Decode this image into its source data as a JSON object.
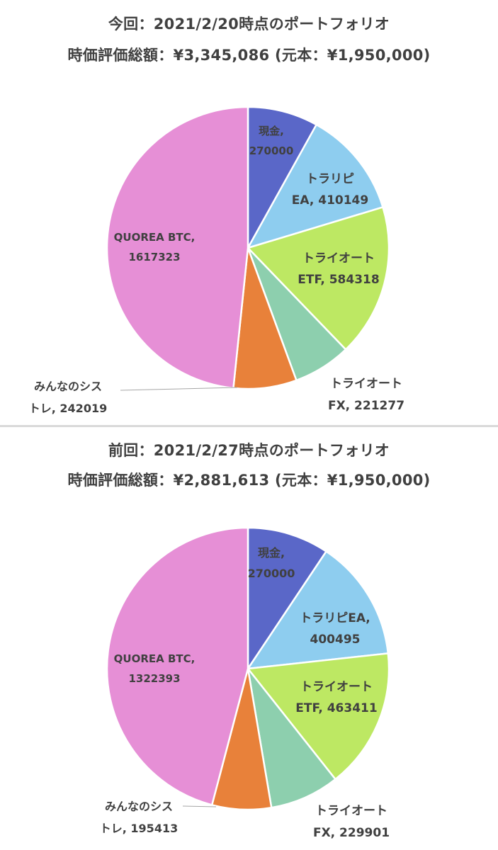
{
  "chart_data": [
    {
      "type": "pie",
      "title": "今回：2021/2/20時点のポートフォリオ",
      "subtitle": "時価評価総額：¥3,345,086 (元本：¥1,950,000)",
      "slices": [
        {
          "label_lines": [
            "現金,",
            "270000"
          ],
          "value": 270000,
          "color": "#5a67c8"
        },
        {
          "label_lines": [
            "トラリピ",
            "EA, 410149"
          ],
          "value": 410149,
          "color": "#8ecdef"
        },
        {
          "label_lines": [
            "トライオート",
            "ETF, 584318"
          ],
          "value": 584318,
          "color": "#bde863"
        },
        {
          "label_lines": [
            "トライオート",
            "FX, 221277"
          ],
          "value": 221277,
          "color": "#8dcfae"
        },
        {
          "label_lines": [
            "みんなのシス",
            "トレ, 242019"
          ],
          "value": 242019,
          "color": "#e8813a"
        },
        {
          "label_lines": [
            "QUOREA BTC,",
            "1617323"
          ],
          "value": 1617323,
          "color": "#e68fd6"
        }
      ]
    },
    {
      "type": "pie",
      "title": "前回：2021/2/27時点のポートフォリオ",
      "subtitle": "時価評価総額：¥2,881,613 (元本：¥1,950,000)",
      "slices": [
        {
          "label_lines": [
            "現金,",
            "270000"
          ],
          "value": 270000,
          "color": "#5a67c8"
        },
        {
          "label_lines": [
            "トラリピEA,",
            "400495"
          ],
          "value": 400495,
          "color": "#8ecdef"
        },
        {
          "label_lines": [
            "トライオート",
            "ETF, 463411"
          ],
          "value": 463411,
          "color": "#bde863"
        },
        {
          "label_lines": [
            "トライオート",
            "FX, 229901"
          ],
          "value": 229901,
          "color": "#8dcfae"
        },
        {
          "label_lines": [
            "みんなのシス",
            "トレ, 195413"
          ],
          "value": 195413,
          "color": "#e8813a"
        },
        {
          "label_lines": [
            "QUOREA BTC,",
            "1322393"
          ],
          "value": 1322393,
          "color": "#e68fd6"
        }
      ]
    }
  ]
}
